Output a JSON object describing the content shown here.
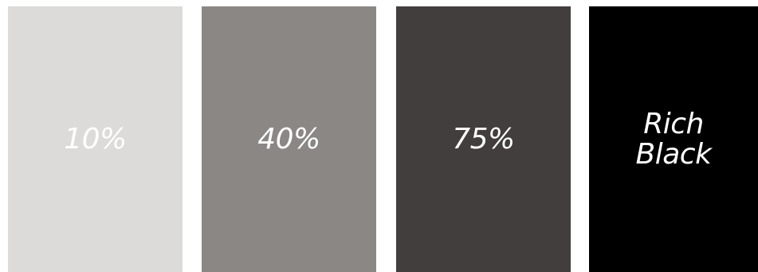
{
  "swatches": [
    {
      "label": "10%",
      "color": "#dcdbd9"
    },
    {
      "label": "40%",
      "color": "#8b8785"
    },
    {
      "label": "75%",
      "color": "#423e3d"
    },
    {
      "label": "Rich\nBlack",
      "color": "#000000"
    }
  ]
}
